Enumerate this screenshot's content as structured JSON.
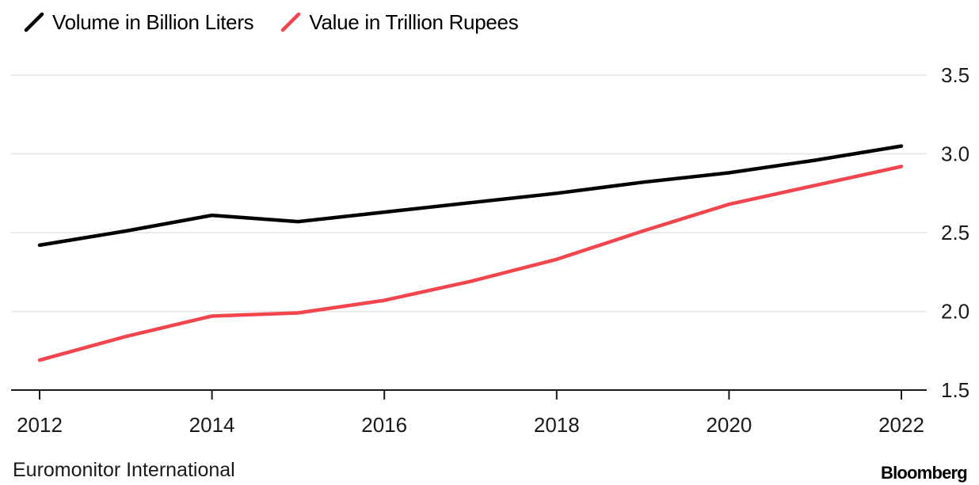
{
  "chart_data": {
    "type": "line",
    "title": "",
    "xlabel": "",
    "ylabel": "",
    "x": [
      2012,
      2013,
      2014,
      2015,
      2016,
      2017,
      2018,
      2019,
      2020,
      2021,
      2022
    ],
    "x_ticks": [
      "2012",
      "2014",
      "2016",
      "2018",
      "2020",
      "2022"
    ],
    "y_ticks": [
      "1.5",
      "2.0",
      "2.5",
      "3.0",
      "3.5"
    ],
    "xlim": [
      2012,
      2022
    ],
    "ylim": [
      1.5,
      3.5
    ],
    "y_axis_side": "right",
    "grid": true,
    "legend_position": "top-left",
    "series": [
      {
        "name": "Volume in Billion Liters",
        "color": "#000000",
        "values": [
          2.42,
          2.51,
          2.61,
          2.57,
          2.63,
          2.69,
          2.75,
          2.82,
          2.88,
          2.96,
          3.05
        ]
      },
      {
        "name": "Value in Trillion Rupees",
        "color": "#f2464f",
        "values": [
          1.69,
          1.84,
          1.97,
          1.99,
          2.07,
          2.19,
          2.33,
          2.51,
          2.68,
          2.8,
          2.92
        ]
      }
    ]
  },
  "footer": {
    "source": "Euromonitor International",
    "brand": "Bloomberg"
  }
}
